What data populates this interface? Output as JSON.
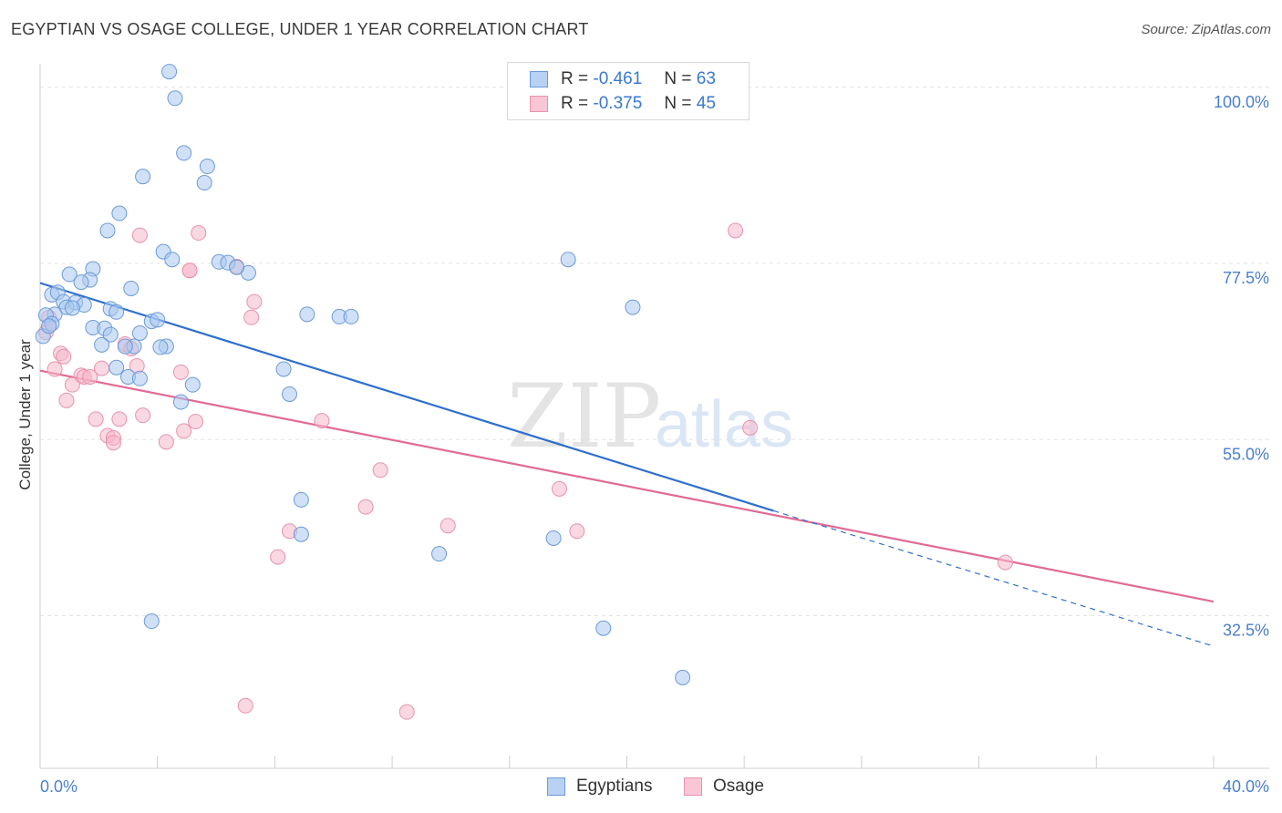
{
  "title": "EGYPTIAN VS OSAGE COLLEGE, UNDER 1 YEAR CORRELATION CHART",
  "source": "Source: ZipAtlas.com",
  "watermark": {
    "zip": "ZIP",
    "atlas": "atlas"
  },
  "legend": {
    "rows": [
      {
        "r_label": "R =",
        "r_value": "-0.461",
        "n_label": "N =",
        "n_value": "63"
      },
      {
        "r_label": "R =",
        "r_value": "-0.375",
        "n_label": "N =",
        "n_value": "45"
      }
    ]
  },
  "colors": {
    "blue_fill": "#a9c8f0",
    "blue_stroke": "#6b9ad8",
    "blue_line": "#2f6fce",
    "pink_fill": "#f6b8cb",
    "pink_stroke": "#e892ae",
    "pink_line": "#e26a95",
    "grid": "#e4e4e4",
    "tick_text": "#4a7fd0"
  },
  "chart_data": {
    "type": "scatter",
    "title": "EGYPTIAN VS OSAGE COLLEGE, UNDER 1 YEAR CORRELATION CHART",
    "xlabel": "",
    "ylabel": "College, Under 1 year",
    "xlim": [
      0,
      40
    ],
    "ylim": [
      13,
      103
    ],
    "x_tick_labels": [
      "0.0%",
      "40.0%"
    ],
    "y_ticks": [
      100,
      77.5,
      55,
      32.5
    ],
    "y_tick_labels": [
      "100.0%",
      "77.5%",
      "55.0%",
      "32.5%"
    ],
    "series": [
      {
        "name": "Egyptians",
        "r": -0.461,
        "n": 63,
        "trend": {
          "x0": 0,
          "y0": 75.0,
          "x1": 25.0,
          "y1": 45.9,
          "dash_to_x": 40,
          "dash_to_y": 28.6
        },
        "points": [
          [
            4.4,
            102.0
          ],
          [
            4.6,
            98.6
          ],
          [
            4.9,
            91.6
          ],
          [
            5.7,
            89.9
          ],
          [
            5.6,
            87.8
          ],
          [
            3.5,
            88.6
          ],
          [
            2.7,
            83.9
          ],
          [
            2.3,
            81.7
          ],
          [
            4.2,
            79.0
          ],
          [
            4.5,
            78.0
          ],
          [
            6.1,
            77.7
          ],
          [
            6.4,
            77.6
          ],
          [
            1.8,
            76.8
          ],
          [
            1.0,
            76.1
          ],
          [
            1.7,
            75.4
          ],
          [
            1.4,
            75.1
          ],
          [
            3.1,
            74.3
          ],
          [
            7.1,
            76.3
          ],
          [
            6.7,
            77.0
          ],
          [
            0.4,
            73.5
          ],
          [
            0.6,
            73.8
          ],
          [
            0.8,
            72.6
          ],
          [
            1.2,
            72.5
          ],
          [
            0.9,
            71.9
          ],
          [
            1.5,
            72.2
          ],
          [
            2.4,
            71.7
          ],
          [
            0.5,
            71.0
          ],
          [
            0.2,
            70.9
          ],
          [
            2.6,
            71.3
          ],
          [
            9.1,
            71.0
          ],
          [
            10.2,
            70.7
          ],
          [
            10.6,
            70.7
          ],
          [
            3.8,
            70.1
          ],
          [
            4.0,
            70.3
          ],
          [
            0.4,
            69.8
          ],
          [
            1.8,
            69.3
          ],
          [
            2.2,
            69.2
          ],
          [
            0.1,
            68.2
          ],
          [
            3.4,
            68.6
          ],
          [
            2.4,
            68.4
          ],
          [
            2.1,
            67.1
          ],
          [
            3.2,
            66.9
          ],
          [
            4.3,
            66.9
          ],
          [
            4.1,
            66.8
          ],
          [
            2.6,
            64.2
          ],
          [
            8.3,
            64.0
          ],
          [
            3.0,
            63.0
          ],
          [
            3.4,
            62.8
          ],
          [
            5.2,
            62.0
          ],
          [
            8.5,
            60.8
          ],
          [
            4.8,
            59.8
          ],
          [
            18.0,
            78.0
          ],
          [
            20.2,
            71.9
          ],
          [
            8.9,
            47.3
          ],
          [
            8.9,
            42.9
          ],
          [
            13.6,
            40.4
          ],
          [
            17.5,
            42.4
          ],
          [
            3.8,
            31.8
          ],
          [
            19.2,
            30.9
          ],
          [
            21.9,
            24.6
          ],
          [
            0.3,
            69.5
          ],
          [
            1.1,
            71.8
          ],
          [
            2.9,
            66.9
          ]
        ]
      },
      {
        "name": "Osage",
        "r": -0.375,
        "n": 45,
        "trend": {
          "x0": 0,
          "y0": 63.8,
          "x1": 40,
          "y1": 34.3
        },
        "points": [
          [
            23.7,
            81.7
          ],
          [
            3.4,
            81.1
          ],
          [
            5.4,
            81.4
          ],
          [
            7.2,
            70.6
          ],
          [
            0.3,
            70.6
          ],
          [
            6.7,
            77.1
          ],
          [
            5.1,
            76.6
          ],
          [
            5.1,
            76.6
          ],
          [
            4.8,
            63.6
          ],
          [
            2.9,
            67.2
          ],
          [
            0.7,
            66.0
          ],
          [
            0.8,
            65.6
          ],
          [
            3.1,
            66.6
          ],
          [
            3.3,
            64.4
          ],
          [
            0.5,
            64.0
          ],
          [
            1.4,
            63.2
          ],
          [
            1.5,
            63.0
          ],
          [
            1.7,
            63.0
          ],
          [
            1.1,
            62.0
          ],
          [
            0.9,
            60.0
          ],
          [
            3.5,
            58.1
          ],
          [
            1.9,
            57.6
          ],
          [
            2.7,
            57.6
          ],
          [
            9.6,
            57.4
          ],
          [
            5.3,
            57.3
          ],
          [
            4.9,
            56.1
          ],
          [
            2.3,
            55.5
          ],
          [
            2.5,
            55.2
          ],
          [
            2.5,
            54.6
          ],
          [
            4.3,
            54.7
          ],
          [
            7.3,
            72.6
          ],
          [
            0.2,
            68.7
          ],
          [
            0.3,
            69.5
          ],
          [
            24.2,
            56.5
          ],
          [
            11.6,
            51.1
          ],
          [
            17.7,
            48.7
          ],
          [
            11.1,
            46.4
          ],
          [
            13.9,
            44.0
          ],
          [
            18.3,
            43.3
          ],
          [
            8.5,
            43.3
          ],
          [
            8.1,
            40.0
          ],
          [
            32.9,
            39.3
          ],
          [
            7.0,
            21.0
          ],
          [
            12.5,
            20.2
          ],
          [
            2.1,
            64.1
          ]
        ]
      }
    ]
  }
}
